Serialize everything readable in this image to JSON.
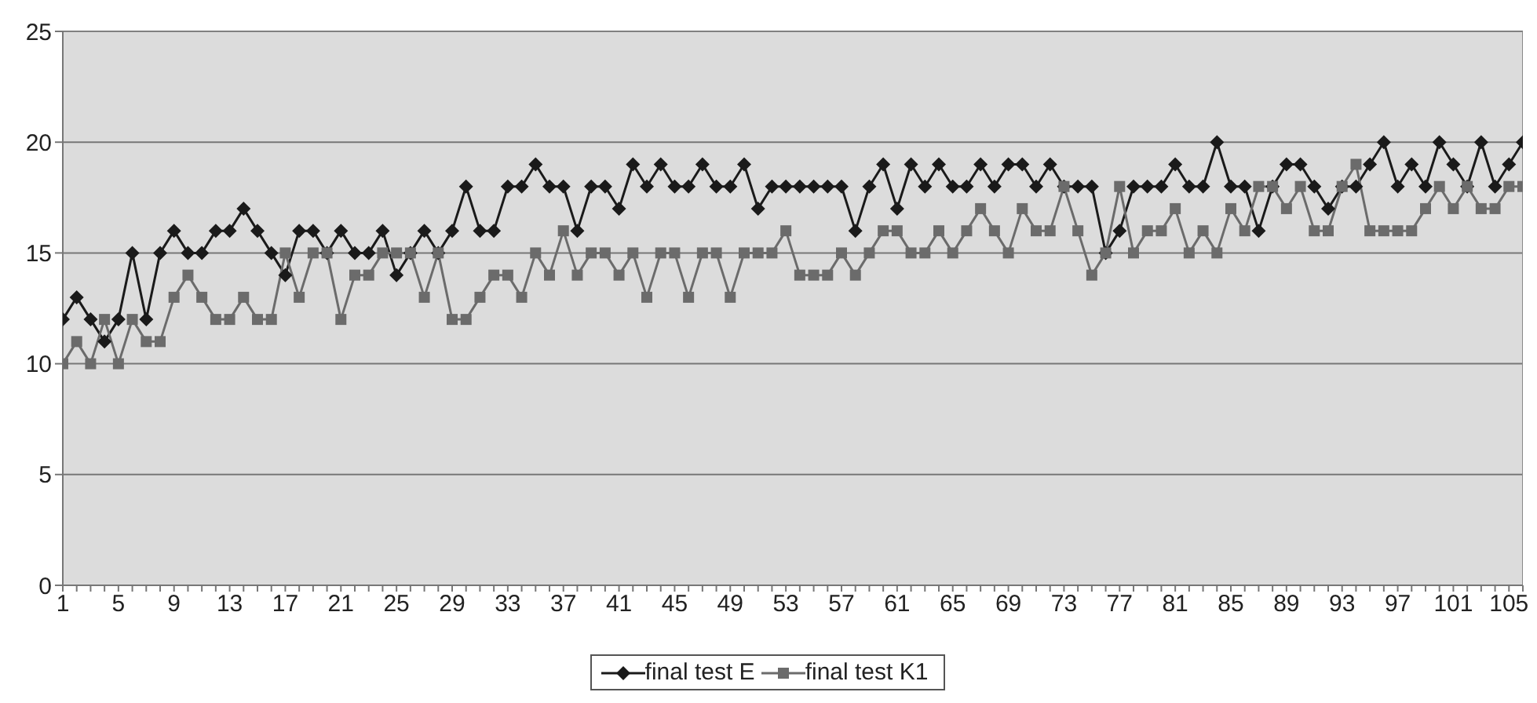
{
  "chart_data": {
    "type": "line",
    "categories": [
      "1",
      null,
      null,
      null,
      "5",
      null,
      null,
      null,
      "9",
      null,
      null,
      null,
      "13",
      null,
      null,
      null,
      "17",
      null,
      null,
      null,
      "21",
      null,
      null,
      null,
      "25",
      null,
      null,
      null,
      "29",
      null,
      null,
      null,
      "33",
      null,
      null,
      null,
      "37",
      null,
      null,
      null,
      "41",
      null,
      null,
      null,
      "45",
      null,
      null,
      null,
      "49",
      null,
      null,
      null,
      "53",
      null,
      null,
      null,
      "57",
      null,
      null,
      null,
      "61",
      null,
      null,
      null,
      "65",
      null,
      null,
      null,
      "69",
      null,
      null,
      null,
      "73",
      null,
      null,
      null,
      "77",
      null,
      null,
      null,
      "81",
      null,
      null,
      null,
      "85",
      null,
      null,
      null,
      "89",
      null,
      null,
      null,
      "93",
      null,
      null,
      null,
      "97",
      null,
      null,
      null,
      "101",
      null,
      null,
      null,
      "105",
      null
    ],
    "series": [
      {
        "name": "final test E",
        "color": "#1a1a1a",
        "marker": "diamond",
        "values": [
          12,
          13,
          12,
          11,
          12,
          15,
          12,
          15,
          16,
          15,
          15,
          16,
          16,
          17,
          16,
          15,
          14,
          16,
          16,
          15,
          16,
          15,
          15,
          16,
          14,
          15,
          16,
          15,
          16,
          18,
          16,
          16,
          18,
          18,
          19,
          18,
          18,
          16,
          18,
          18,
          17,
          19,
          18,
          19,
          18,
          18,
          19,
          18,
          18,
          19,
          17,
          18,
          18,
          18,
          18,
          18,
          18,
          16,
          18,
          19,
          17,
          19,
          18,
          19,
          18,
          18,
          19,
          18,
          19,
          19,
          18,
          19,
          18,
          18,
          18,
          15,
          16,
          18,
          18,
          18,
          19,
          18,
          18,
          20,
          18,
          18,
          16,
          18,
          19,
          19,
          18,
          17,
          18,
          18,
          19,
          20,
          18,
          19,
          18,
          20,
          19,
          18,
          20,
          18,
          19,
          20
        ]
      },
      {
        "name": "final test K1",
        "color": "#6b6b6b",
        "marker": "square",
        "values": [
          10,
          11,
          10,
          12,
          10,
          12,
          11,
          11,
          13,
          14,
          13,
          12,
          12,
          13,
          12,
          12,
          15,
          13,
          15,
          15,
          12,
          14,
          14,
          15,
          15,
          15,
          13,
          15,
          12,
          12,
          13,
          14,
          14,
          13,
          15,
          14,
          16,
          14,
          15,
          15,
          14,
          15,
          13,
          15,
          15,
          13,
          15,
          15,
          13,
          15,
          15,
          15,
          16,
          14,
          14,
          14,
          15,
          14,
          15,
          16,
          16,
          15,
          15,
          16,
          15,
          16,
          17,
          16,
          15,
          17,
          16,
          16,
          18,
          16,
          14,
          15,
          18,
          15,
          16,
          16,
          17,
          15,
          16,
          15,
          17,
          16,
          18,
          18,
          17,
          18,
          16,
          16,
          18,
          19,
          16,
          16,
          16,
          16,
          17,
          18,
          17,
          18,
          17,
          17,
          18,
          18
        ]
      }
    ],
    "ylim": [
      0,
      25
    ],
    "yticks": [
      0,
      5,
      10,
      15,
      20,
      25
    ],
    "grid": "y",
    "legend": "bottom"
  }
}
